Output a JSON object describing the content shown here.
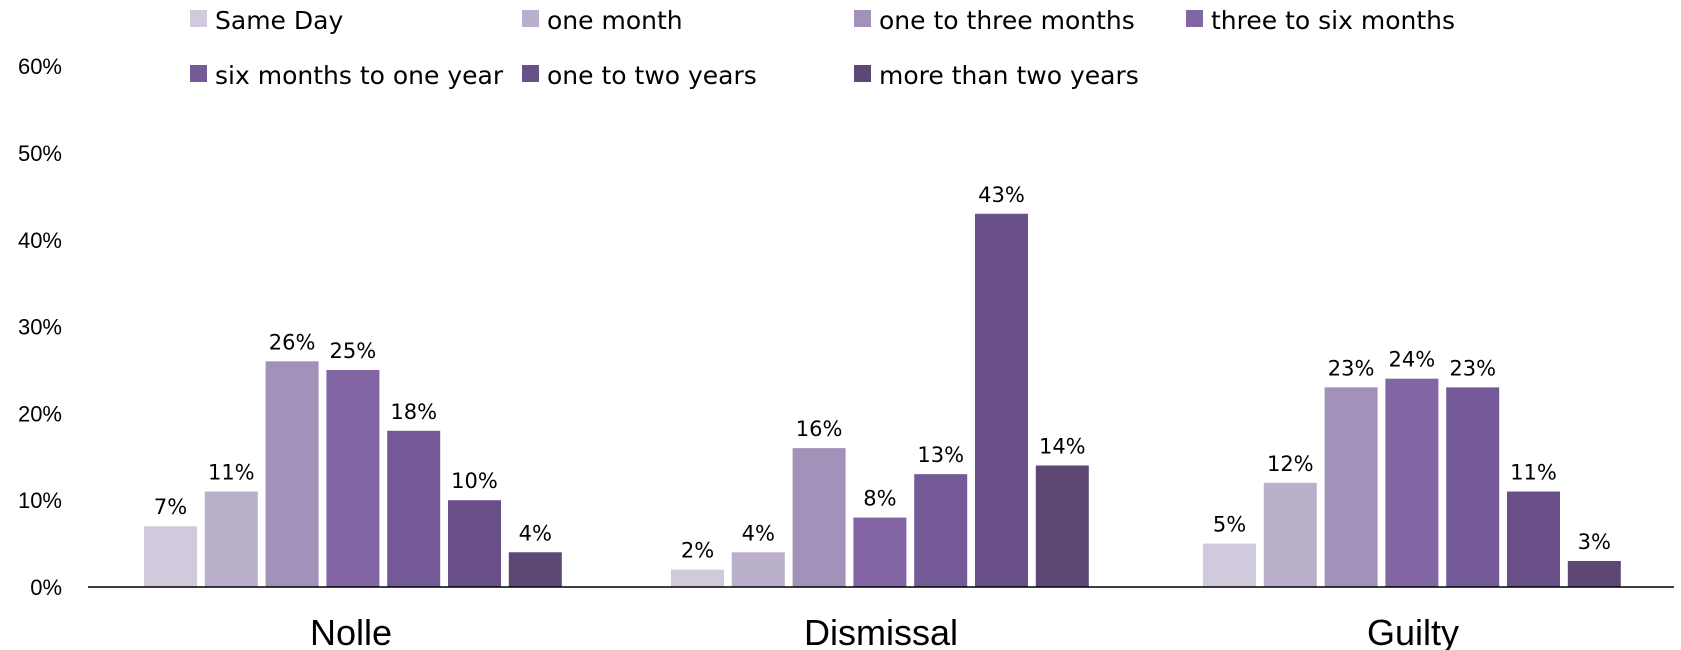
{
  "chart_data": {
    "type": "bar",
    "title": "",
    "xlabel": "",
    "ylabel": "",
    "categories": [
      "Nolle",
      "Dismissal",
      "Guilty"
    ],
    "ylim": [
      0,
      60
    ],
    "y_ticks": [
      "0%",
      "10%",
      "20%",
      "30%",
      "40%",
      "50%",
      "60%"
    ],
    "y_tick_values": [
      0,
      10,
      20,
      30,
      40,
      50,
      60
    ],
    "grid": false,
    "legend_position": "top",
    "series": [
      {
        "name": "Same Day",
        "color": "#d1cadd",
        "values": [
          7,
          2,
          5
        ],
        "labels": [
          "7%",
          "2%",
          "5%"
        ]
      },
      {
        "name": "one month",
        "color": "#bab0cc",
        "values": [
          11,
          4,
          12
        ],
        "labels": [
          "11%",
          "4%",
          "12%"
        ]
      },
      {
        "name": "one to three months",
        "color": "#a292b9",
        "values": [
          26,
          16,
          23
        ],
        "labels": [
          "26%",
          "16%",
          "23%"
        ]
      },
      {
        "name": "three to six months",
        "color": "#8265a3",
        "values": [
          25,
          8,
          24
        ],
        "labels": [
          "25%",
          "8%",
          "24%"
        ]
      },
      {
        "name": "six months to one year",
        "color": "#745b97",
        "values": [
          18,
          13,
          23
        ],
        "labels": [
          "18%",
          "13%",
          "23%"
        ]
      },
      {
        "name": "one to two years",
        "color": "#6a5089",
        "values": [
          10,
          43,
          11
        ],
        "labels": [
          "10%",
          "43%",
          "11%"
        ]
      },
      {
        "name": "more than two years",
        "color": "#5c4775",
        "values": [
          4,
          14,
          3
        ],
        "labels": [
          "4%",
          "14%",
          "3%"
        ]
      }
    ]
  }
}
